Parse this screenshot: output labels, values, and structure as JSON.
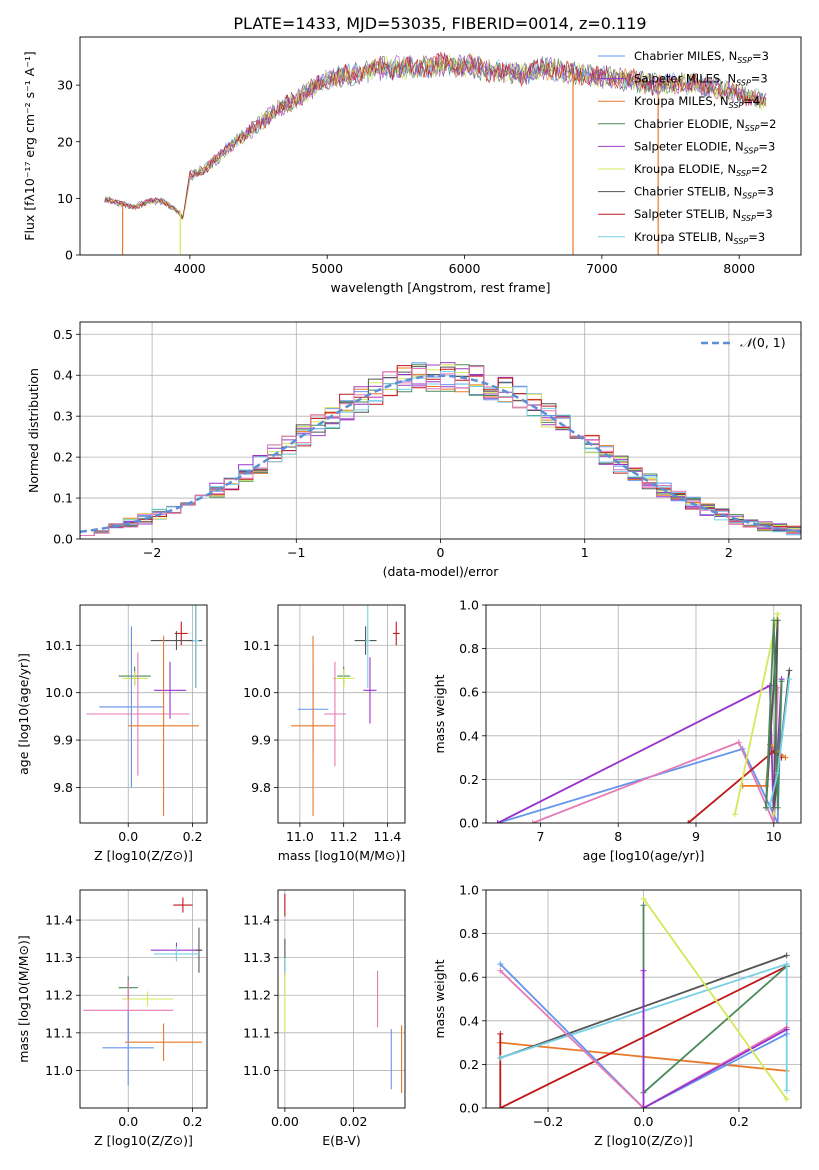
{
  "figure": {
    "title": "PLATE=1433, MJD=53035, FIBERID=0014, z=0.119"
  },
  "colors": {
    "Chabrier MILES": "#6495ed",
    "Salpeter MILES": "#9932cc",
    "Kroupa MILES": "#e8792a",
    "Chabrier ELODIE": "#4a8a5a",
    "Salpeter ELODIE": "#a040c0",
    "Kroupa ELODIE": "#d4e85a",
    "Chabrier STELIB": "#555555",
    "Salpeter STELIB": "#c0181a",
    "Kroupa STELIB": "#76d0e6",
    "extra_pink": "#e67ab4"
  },
  "chart_data": [
    {
      "id": "spectrum",
      "type": "line",
      "xlabel": "wavelength [Angstrom, rest frame]",
      "ylabel": "Flux [fλ10⁻¹⁷ erg cm⁻² s⁻¹ A⁻¹]",
      "xlim": [
        3200,
        8450
      ],
      "ylim": [
        0,
        38.5
      ],
      "xticks": [
        4000,
        5000,
        6000,
        7000,
        8000
      ],
      "yticks": [
        0,
        10,
        20,
        30
      ],
      "legend_position": "top-right",
      "legend": [
        "Chabrier MILES, N_SSP=3",
        "Salpeter MILES, N_SSP=3",
        "Kroupa MILES, N_SSP=4",
        "Chabrier ELODIE, N_SSP=2",
        "Salpeter ELODIE, N_SSP=3",
        "Kroupa ELODIE, N_SSP=2",
        "Chabrier STELIB, N_SSP=3",
        "Salpeter STELIB, N_SSP=3",
        "Kroupa STELIB, N_SSP=3"
      ],
      "legend_colors": [
        "#6495ed",
        "#9932cc",
        "#e8792a",
        "#4a8a5a",
        "#a040c0",
        "#d4e85a",
        "#555555",
        "#c0181a",
        "#76d0e6"
      ],
      "continuum": {
        "x": [
          3380,
          3500,
          3600,
          3700,
          3800,
          3900,
          3950,
          4000,
          4100,
          4200,
          4300,
          4400,
          4500,
          4600,
          4800,
          5000,
          5200,
          5400,
          5600,
          5800,
          6000,
          6200,
          6400,
          6600,
          6800,
          7000,
          7200,
          7400,
          7600,
          7800,
          8000,
          8200
        ],
        "y": [
          10,
          9,
          8.5,
          9.5,
          9.5,
          8,
          6.5,
          14,
          15,
          17,
          19.5,
          21,
          23,
          25,
          28,
          31,
          32,
          33,
          33,
          33.5,
          33.5,
          32.5,
          32,
          33,
          32,
          31.5,
          31,
          30,
          30.5,
          29.5,
          28.5,
          27
        ]
      },
      "drop_lines": [
        {
          "x": 3510,
          "y": 9,
          "color": "#e8792a"
        },
        {
          "x": 3930,
          "y": 8,
          "color": "#d4e85a"
        },
        {
          "x": 6790,
          "y": 32,
          "color": "#e8792a"
        },
        {
          "x": 7410,
          "y": 30,
          "color": "#e8792a"
        }
      ]
    },
    {
      "id": "residuals",
      "type": "step-histogram",
      "xlabel": "(data-model)/error",
      "ylabel": "Normed distribution",
      "xlim": [
        -2.5,
        2.5
      ],
      "ylim": [
        0,
        0.53
      ],
      "xticks": [
        -2,
        -1,
        0,
        1,
        2
      ],
      "yticks": [
        0.0,
        0.1,
        0.2,
        0.3,
        0.4,
        0.5
      ],
      "legend": [
        "N(0,1)"
      ],
      "legend_position": "top-right",
      "bin_width": 0.1,
      "sigma": 1
    },
    {
      "id": "age_vs_Z",
      "type": "errorbar",
      "xlabel": "Z [log10(Z/Z⊙)]",
      "ylabel": "age  [log10(age/yr)]",
      "xlim": [
        -0.15,
        0.245
      ],
      "ylim": [
        9.725,
        10.185
      ],
      "xticks": [
        0.0,
        0.2
      ],
      "yticks": [
        9.8,
        9.9,
        10.0,
        10.1
      ],
      "points": [
        {
          "x": 0.165,
          "y": 10.125,
          "xerr": 0.02,
          "yerr": 0.025,
          "color": "#c0181a"
        },
        {
          "x": 0.15,
          "y": 10.11,
          "xerr": 0.08,
          "yerr": 0.02,
          "color": "#555555"
        },
        {
          "x": 0.21,
          "y": 10.11,
          "xerr": 0.02,
          "yerr": 0.1,
          "color": "#555555"
        },
        {
          "x": 0.21,
          "y": 10.11,
          "xerr": 0.01,
          "yerr": 0.1,
          "color": "#76d0e6"
        },
        {
          "x": 0.02,
          "y": 10.035,
          "xerr": 0.05,
          "yerr": 0.02,
          "color": "#4a8a5a"
        },
        {
          "x": 0.02,
          "y": 10.03,
          "xerr": 0.04,
          "yerr": 0.015,
          "color": "#d4e85a"
        },
        {
          "x": 0.13,
          "y": 10.005,
          "xerr": 0.05,
          "yerr": 0.06,
          "color": "#9932cc"
        },
        {
          "x": 0.01,
          "y": 9.97,
          "xerr": 0.1,
          "yerr": 0.17,
          "color": "#6495ed"
        },
        {
          "x": 0.03,
          "y": 9.955,
          "xerr": 0.16,
          "yerr": 0.13,
          "color": "#e67ab4"
        },
        {
          "x": 0.11,
          "y": 9.93,
          "xerr": 0.11,
          "yerr": 0.19,
          "color": "#e8792a"
        }
      ]
    },
    {
      "id": "age_vs_mass",
      "type": "errorbar",
      "xlabel": "mass [log10(M/M⊙)]",
      "ylabel": "",
      "xlim": [
        10.9,
        11.48
      ],
      "ylim": [
        9.725,
        10.185
      ],
      "xticks": [
        11.0,
        11.2,
        11.4
      ],
      "yticks": [
        9.8,
        9.9,
        10.0,
        10.1
      ],
      "points": [
        {
          "x": 11.44,
          "y": 10.125,
          "xerr": 0.015,
          "yerr": 0.025,
          "color": "#c0181a"
        },
        {
          "x": 11.3,
          "y": 10.11,
          "xerr": 0.05,
          "yerr": 0.03,
          "color": "#555555"
        },
        {
          "x": 11.31,
          "y": 10.11,
          "xerr": 0.01,
          "yerr": 0.1,
          "color": "#76d0e6"
        },
        {
          "x": 11.2,
          "y": 10.035,
          "xerr": 0.03,
          "yerr": 0.02,
          "color": "#4a8a5a"
        },
        {
          "x": 11.2,
          "y": 10.03,
          "xerr": 0.05,
          "yerr": 0.02,
          "color": "#d4e85a"
        },
        {
          "x": 11.32,
          "y": 10.005,
          "xerr": 0.03,
          "yerr": 0.07,
          "color": "#9932cc"
        },
        {
          "x": 11.06,
          "y": 9.965,
          "xerr": 0.07,
          "yerr": 0.09,
          "color": "#6495ed"
        },
        {
          "x": 11.16,
          "y": 9.955,
          "xerr": 0.05,
          "yerr": 0.11,
          "color": "#e67ab4"
        },
        {
          "x": 11.06,
          "y": 9.93,
          "xerr": 0.1,
          "yerr": 0.19,
          "color": "#e8792a"
        }
      ]
    },
    {
      "id": "weight_vs_age",
      "type": "line",
      "xlabel": "age  [log10(age/yr)]",
      "ylabel": "mass weight",
      "xlim": [
        6.3,
        10.35
      ],
      "ylim": [
        0,
        1
      ],
      "xticks": [
        7,
        8,
        9,
        10
      ],
      "yticks": [
        0.0,
        0.2,
        0.4,
        0.6,
        0.8,
        1.0
      ],
      "series": [
        {
          "color": "#6495ed",
          "x": [
            6.45,
            9.6,
            10.05,
            10.1
          ],
          "y": [
            0.0,
            0.34,
            0.0,
            0.66
          ]
        },
        {
          "color": "#9932cc",
          "x": [
            6.45,
            9.95,
            10.0,
            10.1
          ],
          "y": [
            0.0,
            0.63,
            0.0,
            0.66
          ]
        },
        {
          "color": "#e67ab4",
          "x": [
            6.9,
            9.55,
            10.0,
            10.05
          ],
          "y": [
            0.0,
            0.37,
            0.0,
            0.62
          ]
        },
        {
          "color": "#c0181a",
          "x": [
            8.9,
            10.0,
            10.1
          ],
          "y": [
            0.0,
            0.33,
            0.3
          ]
        },
        {
          "color": "#e8792a",
          "x": [
            9.6,
            9.9,
            9.95,
            10.15
          ],
          "y": [
            0.17,
            0.17,
            0.36,
            0.3
          ]
        },
        {
          "color": "#d4e85a",
          "x": [
            9.5,
            10.05,
            10.0
          ],
          "y": [
            0.04,
            0.96,
            0.04
          ]
        },
        {
          "color": "#555555",
          "x": [
            9.9,
            10.05,
            10.0,
            10.2
          ],
          "y": [
            0.07,
            0.93,
            0.07,
            0.7
          ]
        },
        {
          "color": "#4a8a5a",
          "x": [
            9.9,
            10.0,
            10.05,
            10.1
          ],
          "y": [
            0.07,
            0.93,
            0.07,
            0.65
          ]
        },
        {
          "color": "#76d0e6",
          "x": [
            9.95,
            10.05,
            10.2
          ],
          "y": [
            0.08,
            0.23,
            0.66
          ]
        }
      ]
    },
    {
      "id": "mass_vs_Z",
      "type": "errorbar",
      "xlabel": "Z [log10(Z/Z⊙)]",
      "ylabel": "mass [log10(M/M⊙)]",
      "xlim": [
        -0.15,
        0.245
      ],
      "ylim": [
        10.9,
        11.48
      ],
      "xticks": [
        0.0,
        0.2
      ],
      "yticks": [
        11.0,
        11.1,
        11.2,
        11.3,
        11.4
      ],
      "points": [
        {
          "x": 0.17,
          "y": 11.44,
          "xerr": 0.03,
          "yerr": 0.02,
          "color": "#c0181a"
        },
        {
          "x": 0.15,
          "y": 11.32,
          "xerr": 0.08,
          "yerr": 0.02,
          "color": "#9932cc"
        },
        {
          "x": 0.22,
          "y": 11.32,
          "xerr": 0.01,
          "yerr": 0.06,
          "color": "#555555"
        },
        {
          "x": 0.15,
          "y": 11.31,
          "xerr": 0.07,
          "yerr": 0.02,
          "color": "#76d0e6"
        },
        {
          "x": 0.0,
          "y": 11.22,
          "xerr": 0.03,
          "yerr": 0.03,
          "color": "#4a8a5a"
        },
        {
          "x": 0.06,
          "y": 11.19,
          "xerr": 0.08,
          "yerr": 0.02,
          "color": "#d4e85a"
        },
        {
          "x": 0.0,
          "y": 11.16,
          "xerr": 0.14,
          "yerr": 0.08,
          "color": "#e67ab4"
        },
        {
          "x": 0.11,
          "y": 11.075,
          "xerr": 0.12,
          "yerr": 0.05,
          "color": "#e8792a"
        },
        {
          "x": 0.0,
          "y": 11.06,
          "xerr": 0.08,
          "yerr": 0.1,
          "color": "#6495ed"
        }
      ]
    },
    {
      "id": "mass_vs_EBV",
      "type": "errorbar",
      "xlabel": "E(B-V)",
      "ylabel": "",
      "xlim": [
        -0.002,
        0.035
      ],
      "ylim": [
        10.9,
        11.48
      ],
      "xticks": [
        0.0,
        0.02
      ],
      "yticks": [
        11.0,
        11.1,
        11.2,
        11.3,
        11.4
      ],
      "points": [
        {
          "x": 0.0,
          "y": 11.44,
          "xerr": 0.0,
          "yerr": 0.03,
          "color": "#c0181a"
        },
        {
          "x": 0.0,
          "y": 11.3,
          "xerr": 0.0,
          "yerr": 0.05,
          "color": "#555555"
        },
        {
          "x": 0.0,
          "y": 11.25,
          "xerr": 0.0,
          "yerr": 0.05,
          "color": "#76d0e6"
        },
        {
          "x": 0.0,
          "y": 11.18,
          "xerr": 0.0,
          "yerr": 0.08,
          "color": "#d4e85a"
        },
        {
          "x": 0.027,
          "y": 11.19,
          "xerr": 0.0,
          "yerr": 0.075,
          "color": "#e67ab4"
        },
        {
          "x": 0.031,
          "y": 11.03,
          "xerr": 0.0,
          "yerr": 0.08,
          "color": "#6495ed"
        },
        {
          "x": 0.034,
          "y": 11.03,
          "xerr": 0.0,
          "yerr": 0.09,
          "color": "#e8792a"
        }
      ]
    },
    {
      "id": "weight_vs_Z",
      "type": "line",
      "xlabel": "Z [log10(Z/Z⊙)]",
      "ylabel": "mass weight",
      "xlim": [
        -0.33,
        0.33
      ],
      "ylim": [
        0,
        1
      ],
      "xticks": [
        -0.2,
        0.0,
        0.2
      ],
      "yticks": [
        0.0,
        0.2,
        0.4,
        0.6,
        0.8,
        1.0
      ],
      "series": [
        {
          "color": "#e8792a",
          "x": [
            -0.3,
            0.3
          ],
          "y": [
            0.3,
            0.17
          ]
        },
        {
          "color": "#c0181a",
          "x": [
            -0.3,
            -0.3,
            0.3
          ],
          "y": [
            0.34,
            0.0,
            0.65
          ]
        },
        {
          "color": "#555555",
          "x": [
            -0.3,
            0.3
          ],
          "y": [
            0.23,
            0.7
          ]
        },
        {
          "color": "#4a8a5a",
          "x": [
            0.0,
            0.0,
            0.3
          ],
          "y": [
            0.93,
            0.07,
            0.65
          ]
        },
        {
          "color": "#76d0e6",
          "x": [
            -0.3,
            0.3,
            0.3
          ],
          "y": [
            0.23,
            0.66,
            0.08
          ]
        },
        {
          "color": "#6495ed",
          "x": [
            -0.3,
            0.0,
            0.3
          ],
          "y": [
            0.66,
            0.0,
            0.34
          ]
        },
        {
          "color": "#e67ab4",
          "x": [
            -0.3,
            0.0,
            0.3
          ],
          "y": [
            0.63,
            0.0,
            0.37
          ]
        },
        {
          "color": "#9932cc",
          "x": [
            0.0,
            0.0,
            0.3
          ],
          "y": [
            0.63,
            0.0,
            0.36
          ]
        },
        {
          "color": "#d4e85a",
          "x": [
            0.0,
            0.3
          ],
          "y": [
            0.96,
            0.04
          ]
        }
      ]
    }
  ]
}
